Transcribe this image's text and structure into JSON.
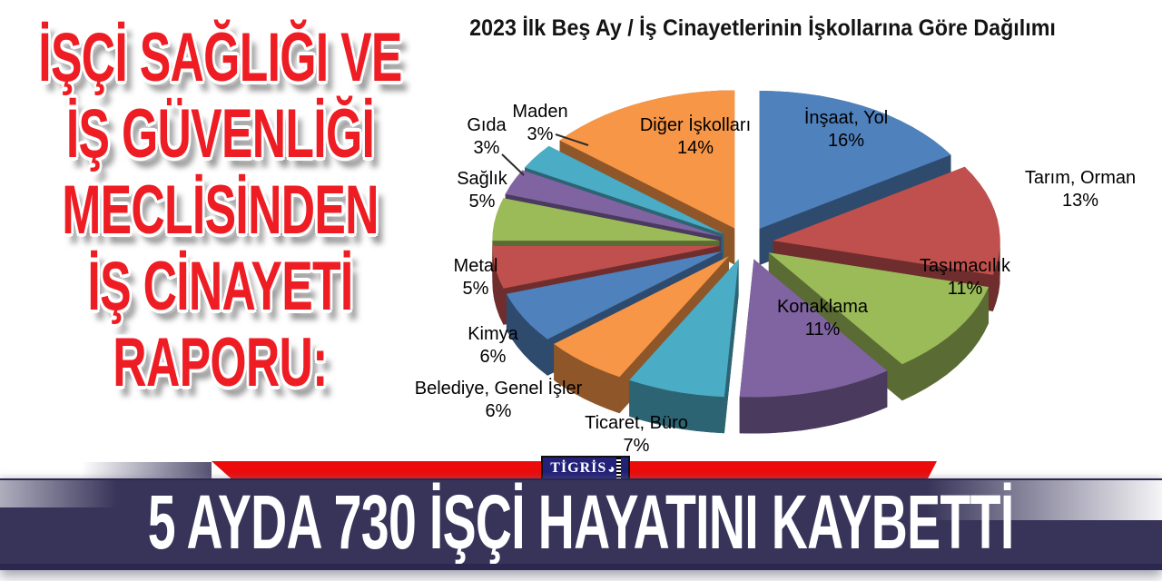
{
  "headline": {
    "lines": [
      "İŞÇİ SAĞLIĞI VE",
      "İŞ GÜVENLİĞİ",
      "MECLİSİNDEN",
      "İŞ CİNAYETİ",
      "RAPORU:"
    ],
    "color": "#ee1c23"
  },
  "chart_data": {
    "type": "pie",
    "style": "3d-exploded",
    "title": "2023 İlk Beş Ay / İş Cinayetlerinin İşkollarına Göre Dağılımı",
    "unit": "%",
    "start_angle_deg": 0,
    "direction": "clockwise",
    "total": 100,
    "slices": [
      {
        "label": "İnşaat, Yol",
        "value": 16,
        "color": "#4F81BD"
      },
      {
        "label": "Tarım, Orman",
        "value": 13,
        "color": "#C0504D"
      },
      {
        "label": "Taşımacılık",
        "value": 11,
        "color": "#9BBB59"
      },
      {
        "label": "Konaklama",
        "value": 11,
        "color": "#8064A2"
      },
      {
        "label": "Ticaret, Büro",
        "value": 7,
        "color": "#4BACC6"
      },
      {
        "label": "Belediye, Genel İşler",
        "value": 6,
        "color": "#F79646"
      },
      {
        "label": "Kimya",
        "value": 6,
        "color": "#4F81BD"
      },
      {
        "label": "Metal",
        "value": 5,
        "color": "#C0504D"
      },
      {
        "label": "Sağlık",
        "value": 5,
        "color": "#9BBB59"
      },
      {
        "label": "Gıda",
        "value": 3,
        "color": "#8064A2"
      },
      {
        "label": "Maden",
        "value": 3,
        "color": "#4BACC6"
      },
      {
        "label": "Diğer İşkolları",
        "value": 14,
        "color": "#F79646"
      }
    ],
    "legend": "none",
    "labels_format": "name + percent"
  },
  "footer": {
    "ribbon_color": "#ed0c0c",
    "logo_text": "TİGRİS",
    "banner_text": "5 AYDA 730 İŞÇİ HAYATINI KAYBETTİ",
    "banner_bg": "#373359",
    "banner_text_color": "#ffffff"
  }
}
